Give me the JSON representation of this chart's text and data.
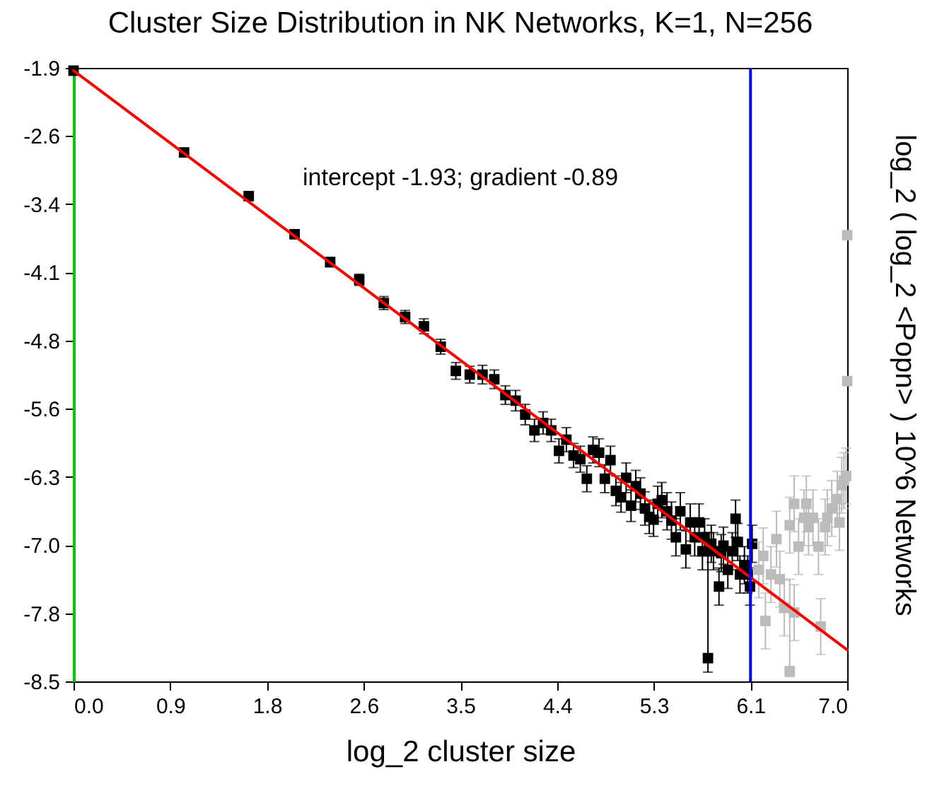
{
  "chart_data": {
    "type": "scatter",
    "title": "Cluster Size Distribution in NK Networks, K=1, N=256",
    "xlabel": "log_2 cluster size",
    "ylabel": "log_2 ( log_2 <Popn> )   10^6 Networks",
    "annotations": [
      "intercept -1.93; gradient -0.89"
    ],
    "xlim": [
      0,
      7
    ],
    "ylim": [
      -8.5,
      -1.9
    ],
    "xticks": [
      {
        "value": 0,
        "label": "0.0"
      },
      {
        "value": 0.875,
        "label": "0.9"
      },
      {
        "value": 1.75,
        "label": "1.8"
      },
      {
        "value": 2.625,
        "label": "2.6"
      },
      {
        "value": 3.5,
        "label": "3.5"
      },
      {
        "value": 4.375,
        "label": "4.4"
      },
      {
        "value": 5.25,
        "label": "5.3"
      },
      {
        "value": 6.125,
        "label": "6.1"
      },
      {
        "value": 7,
        "label": "7.0"
      }
    ],
    "yticks": [
      -1.9,
      {
        "value": -2.6333,
        "label": "-2.6"
      },
      {
        "value": -3.3667,
        "label": "-3.4"
      },
      -4.1,
      {
        "value": -4.8333,
        "label": "-4.8"
      },
      {
        "value": -5.5667,
        "label": "-5.6"
      },
      -6.3,
      {
        "value": -7.0333,
        "label": "-7.0"
      },
      {
        "value": -7.7667,
        "label": "-7.8"
      },
      -8.5
    ],
    "grid": false,
    "marker": "square",
    "ref_lines": [
      {
        "axis": "x",
        "value": 6.125,
        "color": "#0000ff"
      }
    ],
    "series": [
      {
        "color": "#000000",
        "x": [
          0,
          1,
          1.585,
          2,
          2.322,
          2.585,
          2.807,
          3,
          3.17,
          3.322,
          3.459,
          3.585,
          3.7,
          3.807,
          3.907,
          4,
          4.087,
          4.17,
          4.248,
          4.322,
          4.392,
          4.459,
          4.524,
          4.585,
          4.644,
          4.7,
          4.755,
          4.807,
          4.858,
          4.907,
          4.954,
          5,
          5.044,
          5.087,
          5.129,
          5.17,
          5.209,
          5.248,
          5.285,
          5.322,
          5.37,
          5.41,
          5.45,
          5.49,
          5.54,
          5.58,
          5.62,
          5.66,
          5.69,
          5.71,
          5.74,
          5.77,
          5.79,
          5.84,
          5.86,
          5.88,
          5.92,
          5.96,
          5.99,
          6.01,
          6.03,
          6.07,
          6.1,
          6.12,
          6.14
        ],
        "values": [
          -1.93,
          -2.81,
          -3.28,
          -3.69,
          -3.99,
          -4.18,
          -4.43,
          -4.58,
          -4.68,
          -4.9,
          -5.16,
          -5.2,
          -5.2,
          -5.25,
          -5.42,
          -5.48,
          -5.63,
          -5.8,
          -5.72,
          -5.8,
          -6.02,
          -5.9,
          -6.07,
          -6.11,
          -6.32,
          -6.01,
          -6.04,
          -6.32,
          -6.12,
          -6.45,
          -6.52,
          -6.31,
          -6.61,
          -6.4,
          -6.48,
          -6.64,
          -6.73,
          -6.76,
          -6.59,
          -6.55,
          -6.67,
          -6.77,
          -6.95,
          -6.67,
          -7.08,
          -6.79,
          -6.95,
          -6.79,
          -7.1,
          -6.95,
          -8.25,
          -7.02,
          -7.1,
          -7.48,
          -7.12,
          -7.04,
          -7.3,
          -7.1,
          -6.75,
          -7.0,
          -7.35,
          -7.25,
          -7.35,
          -7.48,
          -7.02
        ],
        "errors": [
          0.02,
          0.03,
          0.03,
          0.04,
          0.05,
          0.06,
          0.07,
          0.07,
          0.08,
          0.08,
          0.09,
          0.09,
          0.1,
          0.1,
          0.1,
          0.11,
          0.11,
          0.12,
          0.12,
          0.12,
          0.13,
          0.13,
          0.13,
          0.14,
          0.14,
          0.14,
          0.15,
          0.15,
          0.15,
          0.16,
          0.16,
          0.16,
          0.17,
          0.17,
          0.17,
          0.18,
          0.18,
          0.18,
          0.19,
          0.19,
          0.2,
          0.2,
          0.2,
          0.2,
          0.2,
          0.2,
          0.2,
          0.2,
          0.2,
          0.2,
          [
            -8.4,
            -6.9
          ],
          0.2,
          0.2,
          0.2,
          0.2,
          0.2,
          0.2,
          0.2,
          0.2,
          0.2,
          0.2,
          0.2,
          0.2,
          0.2,
          0.2
        ]
      },
      {
        "color": "#bbbbbb",
        "x": [
          6.2,
          6.24,
          6.26,
          6.31,
          6.36,
          6.39,
          6.43,
          6.48,
          6.48,
          6.52,
          6.52,
          6.56,
          6.61,
          6.63,
          6.65,
          6.69,
          6.74,
          6.76,
          6.8,
          6.82,
          6.86,
          6.91,
          6.93,
          6.95,
          6.97,
          6.99,
          7.0,
          7.0
        ],
        "values": [
          -7.3,
          -7.15,
          -7.85,
          -7.35,
          -6.97,
          -7.4,
          -7.71,
          -6.82,
          -8.39,
          -7.76,
          -6.59,
          -7.05,
          -6.74,
          -6.59,
          -6.84,
          -6.74,
          -7.05,
          -7.91,
          -6.84,
          -6.74,
          -6.64,
          -6.54,
          -6.79,
          -6.39,
          -6.34,
          -6.29,
          -5.27,
          -3.7
        ],
        "errors": [
          0.3,
          0.3,
          0.3,
          0.3,
          0.3,
          0.3,
          0.3,
          0.3,
          [
            -8.45,
            -7.4
          ],
          0.3,
          0.3,
          0.3,
          0.3,
          0.3,
          0.3,
          0.3,
          0.3,
          0.3,
          0.3,
          0.3,
          0.3,
          0.3,
          0.3,
          0.3,
          0.3,
          0.3,
          null,
          null
        ]
      },
      {
        "type": "line",
        "marker": "none",
        "color": "#ff0000",
        "x": [
          0,
          7
        ],
        "values": [
          -1.93,
          -8.16
        ]
      }
    ]
  }
}
